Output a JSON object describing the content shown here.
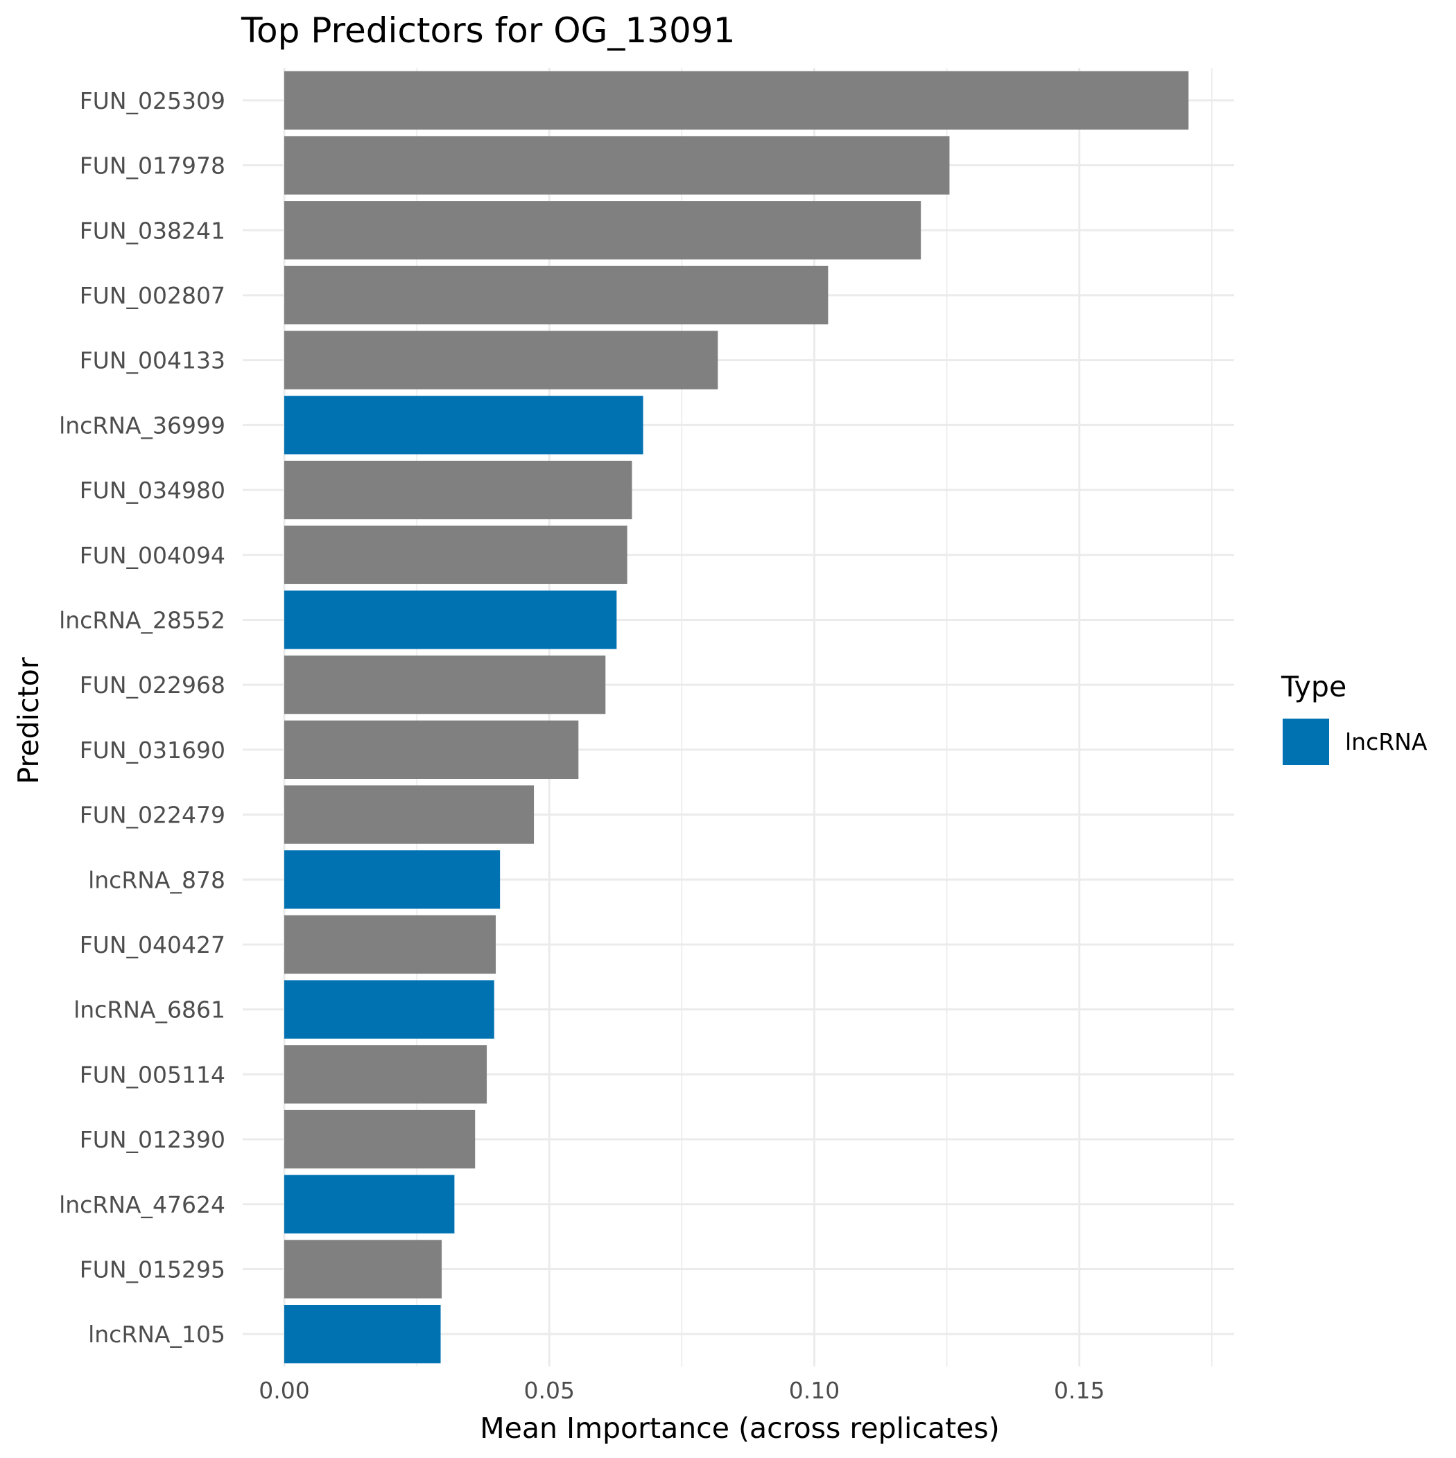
{
  "chart_data": {
    "type": "bar",
    "orientation": "horizontal",
    "title": "Top Predictors for OG_13091",
    "xlabel": "Mean Importance (across replicates)",
    "ylabel": "Predictor",
    "xlim": [
      0,
      0.178
    ],
    "xticks": [
      0.0,
      0.05,
      0.1,
      0.15
    ],
    "xtick_labels": [
      "0.00",
      "0.05",
      "0.10",
      "0.15"
    ],
    "grid": true,
    "legend": {
      "title": "Type",
      "placement": "right",
      "entries": [
        {
          "label": "lncRNA",
          "color": "#0072B2"
        }
      ]
    },
    "colors": {
      "default": "#808080",
      "lncRNA": "#0072B2"
    },
    "categories": [
      "FUN_025309",
      "FUN_017978",
      "FUN_038241",
      "FUN_002807",
      "FUN_004133",
      "lncRNA_36999",
      "FUN_034980",
      "FUN_004094",
      "lncRNA_28552",
      "FUN_022968",
      "FUN_031690",
      "FUN_022479",
      "lncRNA_878",
      "FUN_040427",
      "lncRNA_6861",
      "FUN_005114",
      "FUN_012390",
      "lncRNA_47624",
      "FUN_015295",
      "lncRNA_105"
    ],
    "values": [
      0.1706,
      0.1255,
      0.1201,
      0.1026,
      0.0818,
      0.0677,
      0.0656,
      0.0647,
      0.0627,
      0.0606,
      0.0555,
      0.0471,
      0.0407,
      0.0399,
      0.0396,
      0.0382,
      0.036,
      0.0321,
      0.0297,
      0.0295
    ],
    "types": [
      "",
      "",
      "",
      "",
      "",
      "lncRNA",
      "",
      "",
      "lncRNA",
      "",
      "",
      "",
      "lncRNA",
      "",
      "lncRNA",
      "",
      "",
      "lncRNA",
      "",
      "lncRNA"
    ]
  }
}
